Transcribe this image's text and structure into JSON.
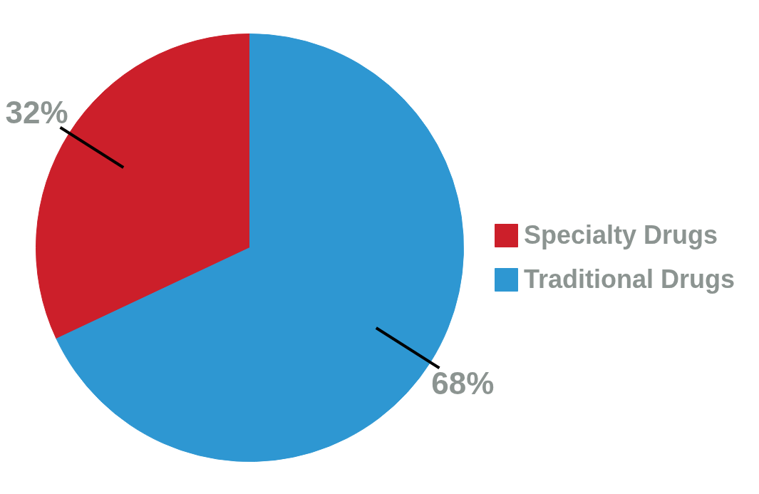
{
  "chart_data": {
    "type": "pie",
    "categories": [
      "Specialty Drugs",
      "Traditional Drugs"
    ],
    "values": [
      32,
      68
    ],
    "colors": [
      "#cc1f2a",
      "#2e97d2"
    ],
    "value_labels": [
      "32%",
      "68%"
    ],
    "legend": "right"
  }
}
